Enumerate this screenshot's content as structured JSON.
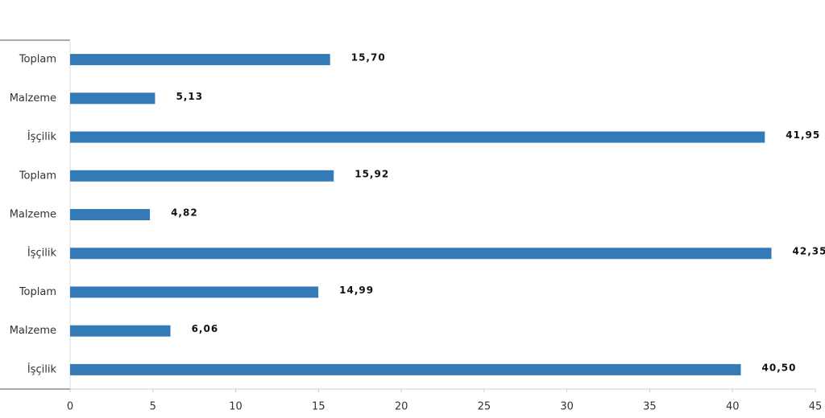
{
  "chart_data": {
    "type": "bar",
    "orientation": "horizontal",
    "categories": [
      "Toplam",
      "Malzeme",
      "İşçilik",
      "Toplam",
      "Malzeme",
      "İşçilik",
      "Toplam",
      "Malzeme",
      "İşçilik"
    ],
    "values": [
      15.7,
      5.13,
      41.95,
      15.92,
      4.82,
      42.35,
      14.99,
      6.06,
      40.5
    ],
    "value_labels": [
      "15,70",
      "5,13",
      "41,95",
      "15,92",
      "4,82",
      "42,35",
      "14,99",
      "6,06",
      "40,50"
    ],
    "color": "#337ab7",
    "xlim": [
      0,
      45
    ],
    "xticks": [
      0,
      5,
      10,
      15,
      20,
      25,
      30,
      35,
      40,
      45
    ]
  }
}
